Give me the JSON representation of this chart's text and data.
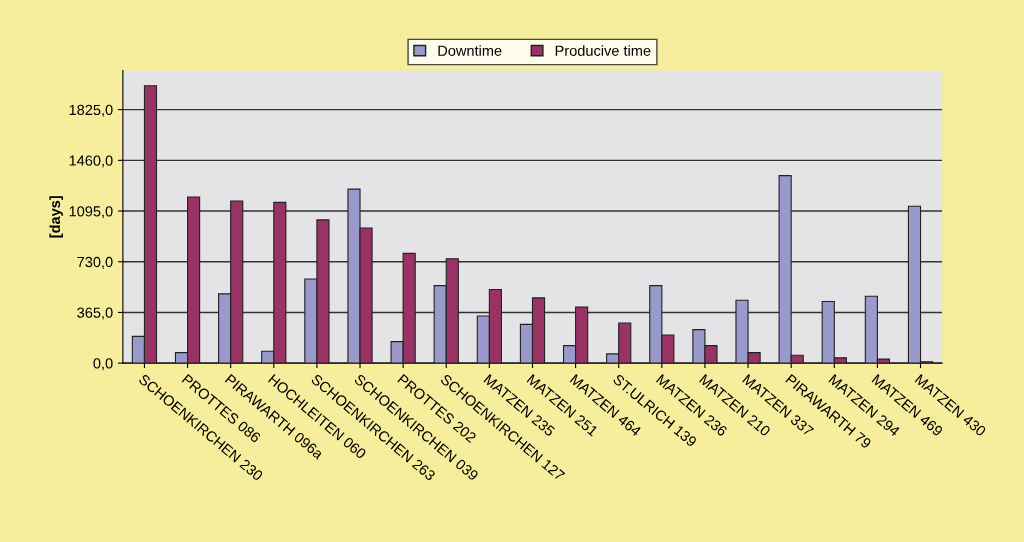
{
  "chart_data": {
    "type": "bar",
    "ylabel": "[days]",
    "categories": [
      "SCHOENKIRCHEN 230",
      "PROTTES 086",
      "PIRAWARTH 096a",
      "HOCHLEITEN 060",
      "SCHOENKIRCHEN 263",
      "SCHOENKIRCHEN 039",
      "PROTTES 202",
      "SCHOENKIRCHEN 127",
      "MATZEN 235",
      "MATZEN 251",
      "MATZEN 464",
      "ST.ULRICH 139",
      "MATZEN 236",
      "MATZEN 210",
      "MATZEN 337",
      "PIRAWARTH 79",
      "MATZEN 294",
      "MATZEN 469",
      "MATZEN 430"
    ],
    "series": [
      {
        "name": "Downtime",
        "color": "#9999cc",
        "values": [
          193,
          76,
          499,
          86,
          606,
          1253,
          155,
          558,
          339,
          279,
          126,
          67,
          558,
          241,
          453,
          1350,
          444,
          482,
          1129
        ]
      },
      {
        "name": "Producive time",
        "color": "#993366",
        "values": [
          1997,
          1195,
          1167,
          1157,
          1031,
          973,
          790,
          752,
          530,
          470,
          403,
          289,
          203,
          126,
          76,
          57,
          38,
          29,
          10
        ]
      }
    ],
    "ylim": [
      0,
      2107
    ],
    "yticks": [
      {
        "value": 0,
        "label": "0,0"
      },
      {
        "value": 365,
        "label": "365,0"
      },
      {
        "value": 730,
        "label": "730,0"
      },
      {
        "value": 1095,
        "label": "1095,0"
      },
      {
        "value": 1460,
        "label": "1460,0"
      },
      {
        "value": 1825,
        "label": "1825,0"
      }
    ],
    "grid": "y",
    "legend": "top"
  }
}
